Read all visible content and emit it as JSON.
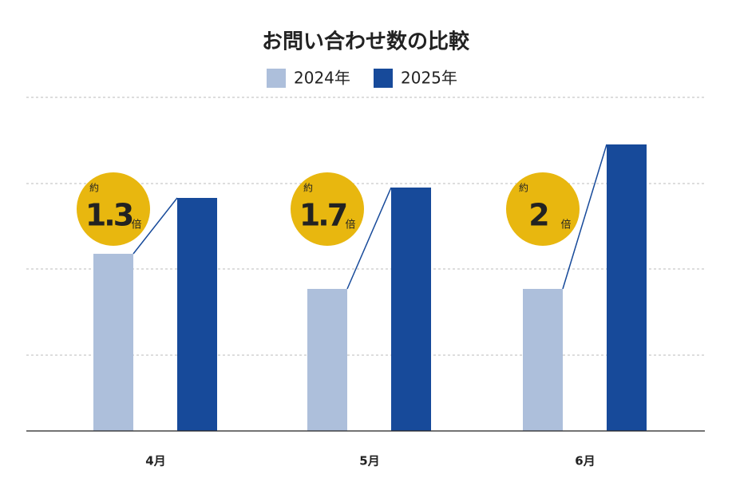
{
  "chart_data": {
    "type": "bar",
    "title": "お問い合わせ数の比較",
    "categories": [
      "4月",
      "5月",
      "6月"
    ],
    "series": [
      {
        "name": "2024年",
        "color": "#adbfdb",
        "values": [
          222,
          178,
          178
        ]
      },
      {
        "name": "2025年",
        "color": "#174a9a",
        "values": [
          292,
          305,
          359
        ]
      }
    ],
    "ylim": [
      0,
      418
    ],
    "yticks": [
      95,
      203,
      310,
      418
    ],
    "grid": true,
    "ratios": [
      1.3,
      1.7,
      2
    ],
    "ratio_prefix": "約",
    "ratio_suffix": "倍",
    "badge_color": "#e8b70f"
  }
}
